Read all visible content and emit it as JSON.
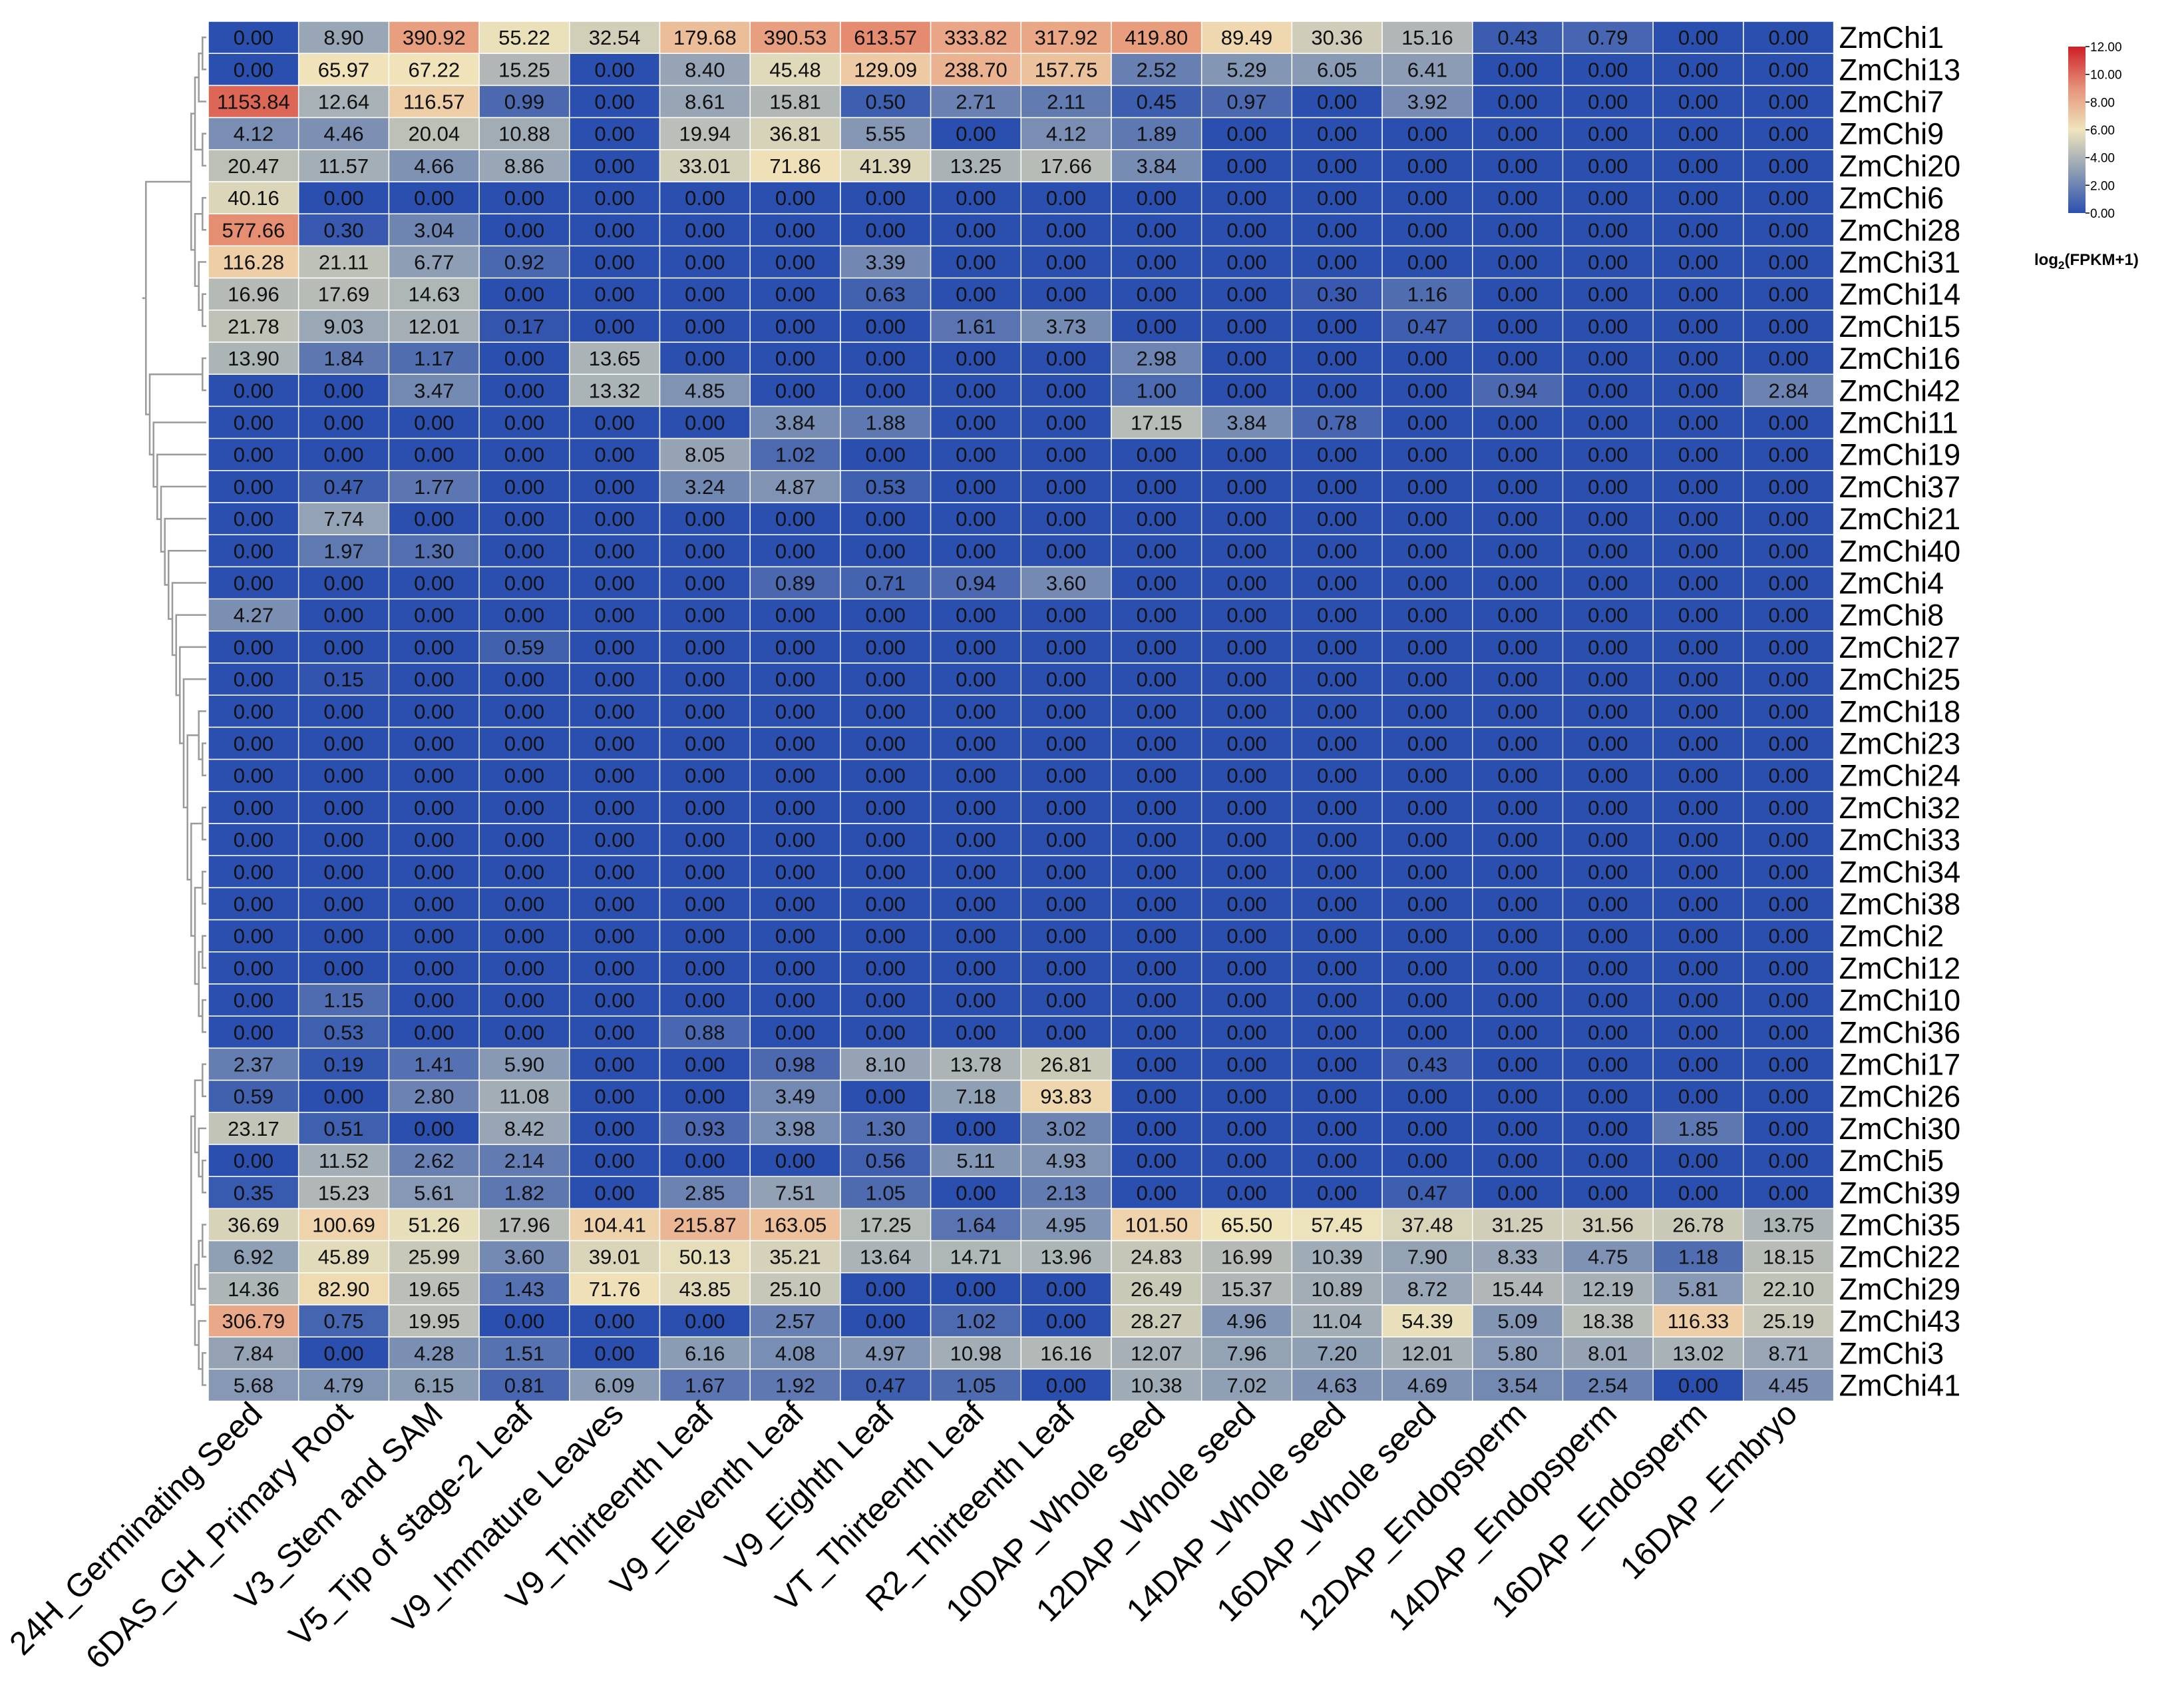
{
  "chart_data": {
    "type": "heatmap",
    "title": "",
    "columns": [
      "24H_Germinating Seed",
      "6DAS_GH_Primary Root",
      "V3_Stem and SAM",
      "V5_Tip of stage-2 Leaf",
      "V9_Immature Leaves",
      "V9_Thirteenth Leaf",
      "V9_Eleventh Leaf",
      "V9_Eighth Leaf",
      "VT_Thirteenth Leaf",
      "R2_Thirteenth Leaf",
      "10DAP_Whole seed",
      "12DAP_Whole seed",
      "14DAP_Whole seed",
      "16DAP_Whole seed",
      "12DAP_Endopsperm",
      "14DAP_Endopsperm",
      "16DAP_Endosperm",
      "16DAP_Embryo"
    ],
    "rows": [
      "ZmChi1",
      "ZmChi13",
      "ZmChi7",
      "ZmChi9",
      "ZmChi20",
      "ZmChi6",
      "ZmChi28",
      "ZmChi31",
      "ZmChi14",
      "ZmChi15",
      "ZmChi16",
      "ZmChi42",
      "ZmChi11",
      "ZmChi19",
      "ZmChi37",
      "ZmChi21",
      "ZmChi40",
      "ZmChi4",
      "ZmChi8",
      "ZmChi27",
      "ZmChi25",
      "ZmChi18",
      "ZmChi23",
      "ZmChi24",
      "ZmChi32",
      "ZmChi33",
      "ZmChi34",
      "ZmChi38",
      "ZmChi2",
      "ZmChi12",
      "ZmChi10",
      "ZmChi36",
      "ZmChi17",
      "ZmChi26",
      "ZmChi30",
      "ZmChi5",
      "ZmChi39",
      "ZmChi35",
      "ZmChi22",
      "ZmChi29",
      "ZmChi43",
      "ZmChi3",
      "ZmChi41"
    ],
    "values": [
      [
        "0.00",
        "8.90",
        "390.92",
        "55.22",
        "32.54",
        "179.68",
        "390.53",
        "613.57",
        "333.82",
        "317.92",
        "419.80",
        "89.49",
        "30.36",
        "15.16",
        "0.43",
        "0.79",
        "0.00",
        "0.00"
      ],
      [
        "0.00",
        "65.97",
        "67.22",
        "15.25",
        "0.00",
        "8.40",
        "45.48",
        "129.09",
        "238.70",
        "157.75",
        "2.52",
        "5.29",
        "6.05",
        "6.41",
        "0.00",
        "0.00",
        "0.00",
        "0.00"
      ],
      [
        "1153.84",
        "12.64",
        "116.57",
        "0.99",
        "0.00",
        "8.61",
        "15.81",
        "0.50",
        "2.71",
        "2.11",
        "0.45",
        "0.97",
        "0.00",
        "3.92",
        "0.00",
        "0.00",
        "0.00",
        "0.00"
      ],
      [
        "4.12",
        "4.46",
        "20.04",
        "10.88",
        "0.00",
        "19.94",
        "36.81",
        "5.55",
        "0.00",
        "4.12",
        "1.89",
        "0.00",
        "0.00",
        "0.00",
        "0.00",
        "0.00",
        "0.00",
        "0.00"
      ],
      [
        "20.47",
        "11.57",
        "4.66",
        "8.86",
        "0.00",
        "33.01",
        "71.86",
        "41.39",
        "13.25",
        "17.66",
        "3.84",
        "0.00",
        "0.00",
        "0.00",
        "0.00",
        "0.00",
        "0.00",
        "0.00"
      ],
      [
        "40.16",
        "0.00",
        "0.00",
        "0.00",
        "0.00",
        "0.00",
        "0.00",
        "0.00",
        "0.00",
        "0.00",
        "0.00",
        "0.00",
        "0.00",
        "0.00",
        "0.00",
        "0.00",
        "0.00",
        "0.00"
      ],
      [
        "577.66",
        "0.30",
        "3.04",
        "0.00",
        "0.00",
        "0.00",
        "0.00",
        "0.00",
        "0.00",
        "0.00",
        "0.00",
        "0.00",
        "0.00",
        "0.00",
        "0.00",
        "0.00",
        "0.00",
        "0.00"
      ],
      [
        "116.28",
        "21.11",
        "6.77",
        "0.92",
        "0.00",
        "0.00",
        "0.00",
        "3.39",
        "0.00",
        "0.00",
        "0.00",
        "0.00",
        "0.00",
        "0.00",
        "0.00",
        "0.00",
        "0.00",
        "0.00"
      ],
      [
        "16.96",
        "17.69",
        "14.63",
        "0.00",
        "0.00",
        "0.00",
        "0.00",
        "0.63",
        "0.00",
        "0.00",
        "0.00",
        "0.00",
        "0.30",
        "1.16",
        "0.00",
        "0.00",
        "0.00",
        "0.00"
      ],
      [
        "21.78",
        "9.03",
        "12.01",
        "0.17",
        "0.00",
        "0.00",
        "0.00",
        "0.00",
        "1.61",
        "3.73",
        "0.00",
        "0.00",
        "0.00",
        "0.47",
        "0.00",
        "0.00",
        "0.00",
        "0.00"
      ],
      [
        "13.90",
        "1.84",
        "1.17",
        "0.00",
        "13.65",
        "0.00",
        "0.00",
        "0.00",
        "0.00",
        "0.00",
        "2.98",
        "0.00",
        "0.00",
        "0.00",
        "0.00",
        "0.00",
        "0.00",
        "0.00"
      ],
      [
        "0.00",
        "0.00",
        "3.47",
        "0.00",
        "13.32",
        "4.85",
        "0.00",
        "0.00",
        "0.00",
        "0.00",
        "1.00",
        "0.00",
        "0.00",
        "0.00",
        "0.94",
        "0.00",
        "0.00",
        "2.84"
      ],
      [
        "0.00",
        "0.00",
        "0.00",
        "0.00",
        "0.00",
        "0.00",
        "3.84",
        "1.88",
        "0.00",
        "0.00",
        "17.15",
        "3.84",
        "0.78",
        "0.00",
        "0.00",
        "0.00",
        "0.00",
        "0.00"
      ],
      [
        "0.00",
        "0.00",
        "0.00",
        "0.00",
        "0.00",
        "8.05",
        "1.02",
        "0.00",
        "0.00",
        "0.00",
        "0.00",
        "0.00",
        "0.00",
        "0.00",
        "0.00",
        "0.00",
        "0.00",
        "0.00"
      ],
      [
        "0.00",
        "0.47",
        "1.77",
        "0.00",
        "0.00",
        "3.24",
        "4.87",
        "0.53",
        "0.00",
        "0.00",
        "0.00",
        "0.00",
        "0.00",
        "0.00",
        "0.00",
        "0.00",
        "0.00",
        "0.00"
      ],
      [
        "0.00",
        "7.74",
        "0.00",
        "0.00",
        "0.00",
        "0.00",
        "0.00",
        "0.00",
        "0.00",
        "0.00",
        "0.00",
        "0.00",
        "0.00",
        "0.00",
        "0.00",
        "0.00",
        "0.00",
        "0.00"
      ],
      [
        "0.00",
        "1.97",
        "1.30",
        "0.00",
        "0.00",
        "0.00",
        "0.00",
        "0.00",
        "0.00",
        "0.00",
        "0.00",
        "0.00",
        "0.00",
        "0.00",
        "0.00",
        "0.00",
        "0.00",
        "0.00"
      ],
      [
        "0.00",
        "0.00",
        "0.00",
        "0.00",
        "0.00",
        "0.00",
        "0.89",
        "0.71",
        "0.94",
        "3.60",
        "0.00",
        "0.00",
        "0.00",
        "0.00",
        "0.00",
        "0.00",
        "0.00",
        "0.00"
      ],
      [
        "4.27",
        "0.00",
        "0.00",
        "0.00",
        "0.00",
        "0.00",
        "0.00",
        "0.00",
        "0.00",
        "0.00",
        "0.00",
        "0.00",
        "0.00",
        "0.00",
        "0.00",
        "0.00",
        "0.00",
        "0.00"
      ],
      [
        "0.00",
        "0.00",
        "0.00",
        "0.59",
        "0.00",
        "0.00",
        "0.00",
        "0.00",
        "0.00",
        "0.00",
        "0.00",
        "0.00",
        "0.00",
        "0.00",
        "0.00",
        "0.00",
        "0.00",
        "0.00"
      ],
      [
        "0.00",
        "0.15",
        "0.00",
        "0.00",
        "0.00",
        "0.00",
        "0.00",
        "0.00",
        "0.00",
        "0.00",
        "0.00",
        "0.00",
        "0.00",
        "0.00",
        "0.00",
        "0.00",
        "0.00",
        "0.00"
      ],
      [
        "0.00",
        "0.00",
        "0.00",
        "0.00",
        "0.00",
        "0.00",
        "0.00",
        "0.00",
        "0.00",
        "0.00",
        "0.00",
        "0.00",
        "0.00",
        "0.00",
        "0.00",
        "0.00",
        "0.00",
        "0.00"
      ],
      [
        "0.00",
        "0.00",
        "0.00",
        "0.00",
        "0.00",
        "0.00",
        "0.00",
        "0.00",
        "0.00",
        "0.00",
        "0.00",
        "0.00",
        "0.00",
        "0.00",
        "0.00",
        "0.00",
        "0.00",
        "0.00"
      ],
      [
        "0.00",
        "0.00",
        "0.00",
        "0.00",
        "0.00",
        "0.00",
        "0.00",
        "0.00",
        "0.00",
        "0.00",
        "0.00",
        "0.00",
        "0.00",
        "0.00",
        "0.00",
        "0.00",
        "0.00",
        "0.00"
      ],
      [
        "0.00",
        "0.00",
        "0.00",
        "0.00",
        "0.00",
        "0.00",
        "0.00",
        "0.00",
        "0.00",
        "0.00",
        "0.00",
        "0.00",
        "0.00",
        "0.00",
        "0.00",
        "0.00",
        "0.00",
        "0.00"
      ],
      [
        "0.00",
        "0.00",
        "0.00",
        "0.00",
        "0.00",
        "0.00",
        "0.00",
        "0.00",
        "0.00",
        "0.00",
        "0.00",
        "0.00",
        "0.00",
        "0.00",
        "0.00",
        "0.00",
        "0.00",
        "0.00"
      ],
      [
        "0.00",
        "0.00",
        "0.00",
        "0.00",
        "0.00",
        "0.00",
        "0.00",
        "0.00",
        "0.00",
        "0.00",
        "0.00",
        "0.00",
        "0.00",
        "0.00",
        "0.00",
        "0.00",
        "0.00",
        "0.00"
      ],
      [
        "0.00",
        "0.00",
        "0.00",
        "0.00",
        "0.00",
        "0.00",
        "0.00",
        "0.00",
        "0.00",
        "0.00",
        "0.00",
        "0.00",
        "0.00",
        "0.00",
        "0.00",
        "0.00",
        "0.00",
        "0.00"
      ],
      [
        "0.00",
        "0.00",
        "0.00",
        "0.00",
        "0.00",
        "0.00",
        "0.00",
        "0.00",
        "0.00",
        "0.00",
        "0.00",
        "0.00",
        "0.00",
        "0.00",
        "0.00",
        "0.00",
        "0.00",
        "0.00"
      ],
      [
        "0.00",
        "0.00",
        "0.00",
        "0.00",
        "0.00",
        "0.00",
        "0.00",
        "0.00",
        "0.00",
        "0.00",
        "0.00",
        "0.00",
        "0.00",
        "0.00",
        "0.00",
        "0.00",
        "0.00",
        "0.00"
      ],
      [
        "0.00",
        "1.15",
        "0.00",
        "0.00",
        "0.00",
        "0.00",
        "0.00",
        "0.00",
        "0.00",
        "0.00",
        "0.00",
        "0.00",
        "0.00",
        "0.00",
        "0.00",
        "0.00",
        "0.00",
        "0.00"
      ],
      [
        "0.00",
        "0.53",
        "0.00",
        "0.00",
        "0.00",
        "0.88",
        "0.00",
        "0.00",
        "0.00",
        "0.00",
        "0.00",
        "0.00",
        "0.00",
        "0.00",
        "0.00",
        "0.00",
        "0.00",
        "0.00"
      ],
      [
        "2.37",
        "0.19",
        "1.41",
        "5.90",
        "0.00",
        "0.00",
        "0.98",
        "8.10",
        "13.78",
        "26.81",
        "0.00",
        "0.00",
        "0.00",
        "0.43",
        "0.00",
        "0.00",
        "0.00",
        "0.00"
      ],
      [
        "0.59",
        "0.00",
        "2.80",
        "11.08",
        "0.00",
        "0.00",
        "3.49",
        "0.00",
        "7.18",
        "93.83",
        "0.00",
        "0.00",
        "0.00",
        "0.00",
        "0.00",
        "0.00",
        "0.00",
        "0.00"
      ],
      [
        "23.17",
        "0.51",
        "0.00",
        "8.42",
        "0.00",
        "0.93",
        "3.98",
        "1.30",
        "0.00",
        "3.02",
        "0.00",
        "0.00",
        "0.00",
        "0.00",
        "0.00",
        "0.00",
        "1.85",
        "0.00"
      ],
      [
        "0.00",
        "11.52",
        "2.62",
        "2.14",
        "0.00",
        "0.00",
        "0.00",
        "0.56",
        "5.11",
        "4.93",
        "0.00",
        "0.00",
        "0.00",
        "0.00",
        "0.00",
        "0.00",
        "0.00",
        "0.00"
      ],
      [
        "0.35",
        "15.23",
        "5.61",
        "1.82",
        "0.00",
        "2.85",
        "7.51",
        "1.05",
        "0.00",
        "2.13",
        "0.00",
        "0.00",
        "0.00",
        "0.47",
        "0.00",
        "0.00",
        "0.00",
        "0.00"
      ],
      [
        "36.69",
        "100.69",
        "51.26",
        "17.96",
        "104.41",
        "215.87",
        "163.05",
        "17.25",
        "1.64",
        "4.95",
        "101.50",
        "65.50",
        "57.45",
        "37.48",
        "31.25",
        "31.56",
        "26.78",
        "13.75"
      ],
      [
        "6.92",
        "45.89",
        "25.99",
        "3.60",
        "39.01",
        "50.13",
        "35.21",
        "13.64",
        "14.71",
        "13.96",
        "24.83",
        "16.99",
        "10.39",
        "7.90",
        "8.33",
        "4.75",
        "1.18",
        "18.15"
      ],
      [
        "14.36",
        "82.90",
        "19.65",
        "1.43",
        "71.76",
        "43.85",
        "25.10",
        "0.00",
        "0.00",
        "0.00",
        "26.49",
        "15.37",
        "10.89",
        "8.72",
        "15.44",
        "12.19",
        "5.81",
        "22.10"
      ],
      [
        "306.79",
        "0.75",
        "19.95",
        "0.00",
        "0.00",
        "0.00",
        "2.57",
        "0.00",
        "1.02",
        "0.00",
        "28.27",
        "4.96",
        "11.04",
        "54.39",
        "5.09",
        "18.38",
        "116.33",
        "25.19"
      ],
      [
        "7.84",
        "0.00",
        "4.28",
        "1.51",
        "0.00",
        "6.16",
        "4.08",
        "4.97",
        "10.98",
        "16.16",
        "12.07",
        "7.96",
        "7.20",
        "12.01",
        "5.80",
        "8.01",
        "13.02",
        "8.71"
      ],
      [
        "5.68",
        "4.79",
        "6.15",
        "0.81",
        "6.09",
        "1.67",
        "1.92",
        "0.47",
        "1.05",
        "0.00",
        "10.38",
        "7.02",
        "4.63",
        "4.69",
        "3.54",
        "2.54",
        "0.00",
        "4.45"
      ]
    ],
    "color_scale": {
      "transform": "log2(FPKM+1)",
      "range": [
        0,
        12
      ],
      "ticks": [
        "12.00",
        "10.00",
        "8.00",
        "6.00",
        "4.00",
        "2.00",
        "0.00"
      ],
      "colors": {
        "low": "#2b4fae",
        "mid_low": "#8f9fb4",
        "mid": "#f0e5bb",
        "mid_high": "#e79577",
        "high": "#cd1f26"
      }
    },
    "legend": {
      "title_prefix": "log",
      "title_sub": "2",
      "title_suffix": "(FPKM+1)",
      "placement": "top-right"
    },
    "dendrogram": "row clustering (left)"
  }
}
